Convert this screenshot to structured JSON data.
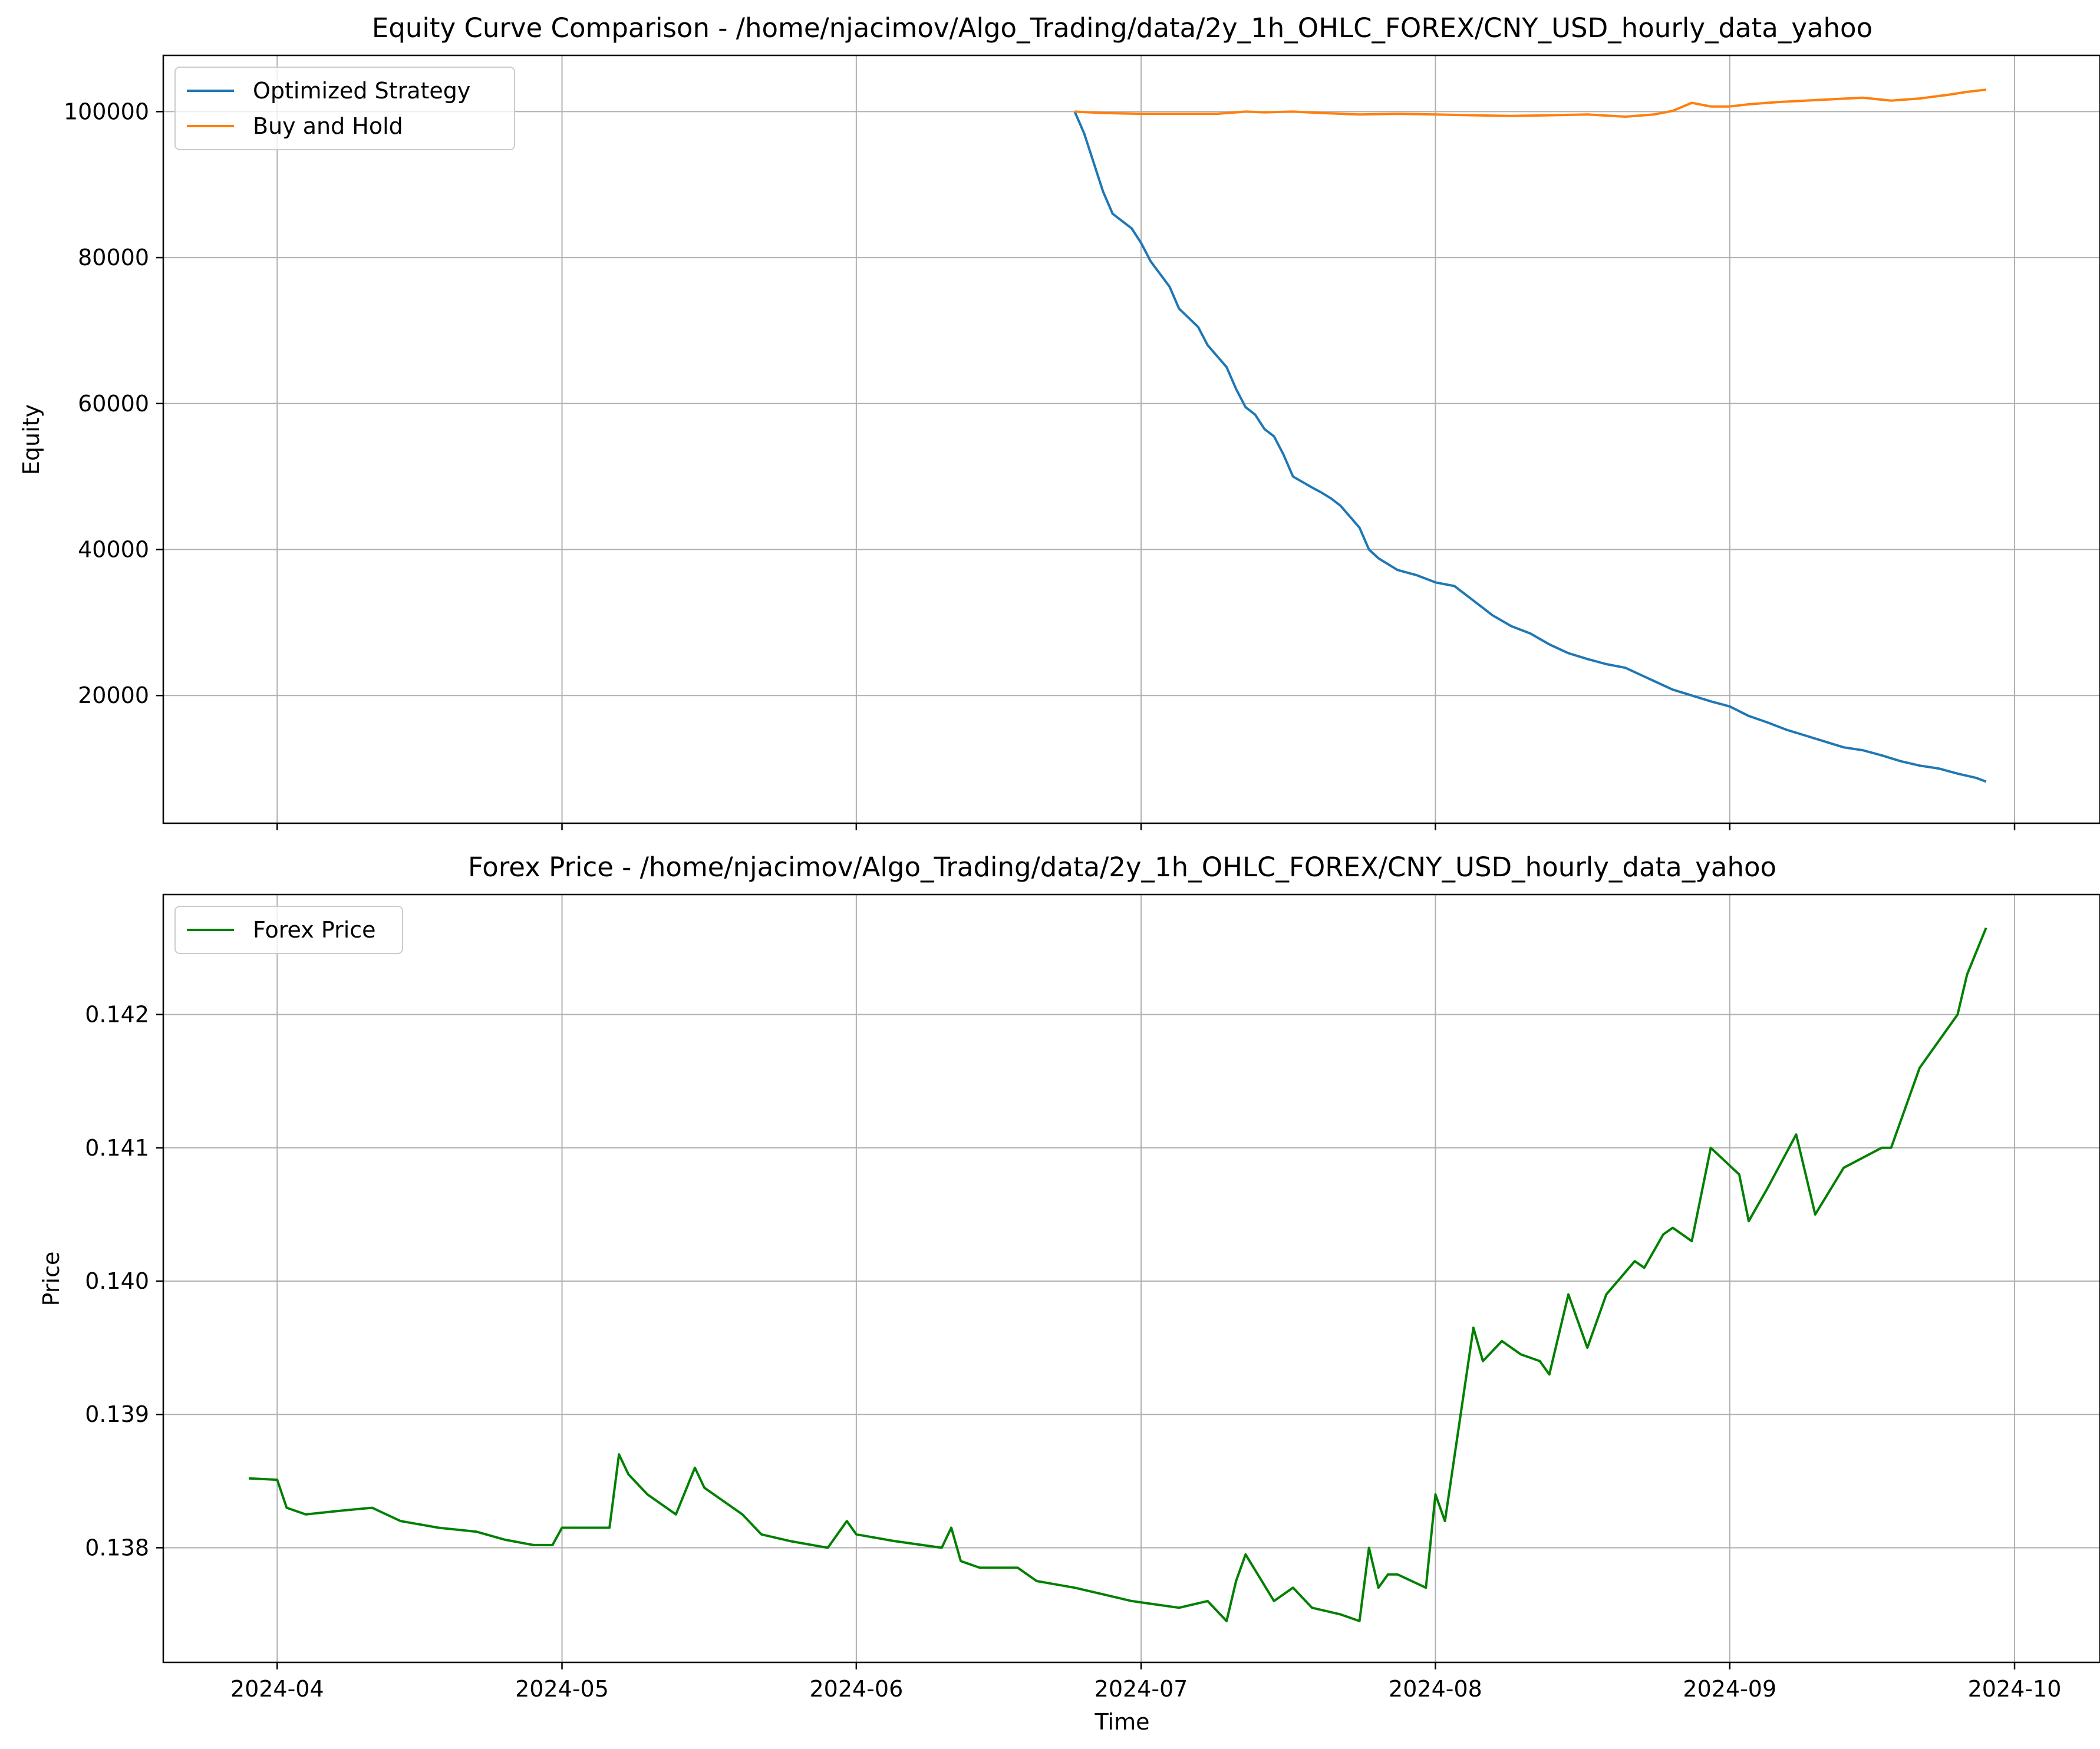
{
  "chart_data": [
    {
      "type": "line",
      "title": "Equity Curve Comparison - /home/njacimov/Algo_Trading/data/2y_1h_OHLC_FOREX/CNY_USD_hourly_data_yahoo",
      "xlabel": "",
      "ylabel": "Equity",
      "grid": true,
      "legend_position": "top-left",
      "xlim": [
        "2024-03-20",
        "2024-10-10"
      ],
      "ylim": [
        2500,
        107700
      ],
      "yticks": [
        20000,
        40000,
        60000,
        80000,
        100000
      ],
      "ytick_labels": [
        "20000",
        "40000",
        "60000",
        "80000",
        "100000"
      ],
      "xticks": [
        "2024-04-01",
        "2024-05-01",
        "2024-06-01",
        "2024-07-01",
        "2024-08-01",
        "2024-09-01",
        "2024-10-01"
      ],
      "series": [
        {
          "name": "Optimized Strategy",
          "color": "#1f77b4",
          "x": [
            "2024-06-24",
            "2024-06-25",
            "2024-06-26",
            "2024-06-27",
            "2024-06-28",
            "2024-06-30",
            "2024-07-01",
            "2024-07-02",
            "2024-07-04",
            "2024-07-05",
            "2024-07-07",
            "2024-07-08",
            "2024-07-10",
            "2024-07-11",
            "2024-07-12",
            "2024-07-13",
            "2024-07-14",
            "2024-07-15",
            "2024-07-16",
            "2024-07-17",
            "2024-07-19",
            "2024-07-20",
            "2024-07-21",
            "2024-07-22",
            "2024-07-23",
            "2024-07-24",
            "2024-07-25",
            "2024-07-26",
            "2024-07-28",
            "2024-07-30",
            "2024-08-01",
            "2024-08-03",
            "2024-08-05",
            "2024-08-07",
            "2024-08-09",
            "2024-08-11",
            "2024-08-13",
            "2024-08-15",
            "2024-08-17",
            "2024-08-19",
            "2024-08-21",
            "2024-08-24",
            "2024-08-26",
            "2024-08-28",
            "2024-08-30",
            "2024-09-01",
            "2024-09-03",
            "2024-09-05",
            "2024-09-07",
            "2024-09-09",
            "2024-09-11",
            "2024-09-13",
            "2024-09-15",
            "2024-09-17",
            "2024-09-19",
            "2024-09-21",
            "2024-09-23",
            "2024-09-25",
            "2024-09-27",
            "2024-09-28"
          ],
          "values": [
            100000,
            97000,
            93000,
            89000,
            86000,
            84000,
            82000,
            79500,
            76000,
            73000,
            70500,
            68000,
            65000,
            62000,
            59500,
            58500,
            56500,
            55500,
            53000,
            50000,
            48500,
            47800,
            47000,
            46000,
            44500,
            43000,
            40000,
            38800,
            37200,
            36500,
            35500,
            35000,
            33000,
            31000,
            29500,
            28500,
            27000,
            25800,
            25000,
            24300,
            23800,
            22000,
            20800,
            20000,
            19200,
            18500,
            17200,
            16300,
            15300,
            14500,
            13700,
            12900,
            12500,
            11800,
            11000,
            10400,
            10000,
            9300,
            8700,
            8200
          ]
        },
        {
          "name": "Buy and Hold",
          "color": "#ff7f0e",
          "x": [
            "2024-06-24",
            "2024-06-27",
            "2024-07-01",
            "2024-07-05",
            "2024-07-09",
            "2024-07-12",
            "2024-07-14",
            "2024-07-17",
            "2024-07-20",
            "2024-07-24",
            "2024-07-28",
            "2024-08-01",
            "2024-08-05",
            "2024-08-09",
            "2024-08-13",
            "2024-08-17",
            "2024-08-21",
            "2024-08-24",
            "2024-08-26",
            "2024-08-28",
            "2024-08-30",
            "2024-09-01",
            "2024-09-03",
            "2024-09-06",
            "2024-09-09",
            "2024-09-12",
            "2024-09-15",
            "2024-09-18",
            "2024-09-21",
            "2024-09-24",
            "2024-09-26",
            "2024-09-28"
          ],
          "values": [
            100000,
            99800,
            99700,
            99700,
            99700,
            100000,
            99900,
            100000,
            99800,
            99600,
            99700,
            99600,
            99500,
            99400,
            99500,
            99600,
            99300,
            99600,
            100100,
            101200,
            100700,
            100700,
            101000,
            101300,
            101500,
            101700,
            101900,
            101500,
            101800,
            102300,
            102700,
            103000
          ]
        }
      ]
    },
    {
      "type": "line",
      "title": "Forex Price - /home/njacimov/Algo_Trading/data/2y_1h_OHLC_FOREX/CNY_USD_hourly_data_yahoo",
      "xlabel": "Time",
      "ylabel": "Price",
      "grid": true,
      "legend_position": "top-left",
      "xlim": [
        "2024-03-20",
        "2024-10-10"
      ],
      "ylim": [
        0.13714,
        0.1429
      ],
      "yticks": [
        0.138,
        0.139,
        0.14,
        0.141,
        0.142
      ],
      "ytick_labels": [
        "0.138",
        "0.139",
        "0.140",
        "0.141",
        "0.142"
      ],
      "xticks": [
        "2024-04-01",
        "2024-05-01",
        "2024-06-01",
        "2024-07-01",
        "2024-08-01",
        "2024-09-01",
        "2024-10-01"
      ],
      "xtick_labels": [
        "2024-04",
        "2024-05",
        "2024-06",
        "2024-07",
        "2024-08",
        "2024-09",
        "2024-10"
      ],
      "series": [
        {
          "name": "Forex Price",
          "color": "#008000",
          "x": [
            "2024-03-29",
            "2024-04-01",
            "2024-04-02",
            "2024-04-04",
            "2024-04-08",
            "2024-04-11",
            "2024-04-14",
            "2024-04-18",
            "2024-04-22",
            "2024-04-25",
            "2024-04-28",
            "2024-04-30",
            "2024-05-01",
            "2024-05-06",
            "2024-05-07",
            "2024-05-08",
            "2024-05-10",
            "2024-05-13",
            "2024-05-15",
            "2024-05-16",
            "2024-05-20",
            "2024-05-22",
            "2024-05-25",
            "2024-05-29",
            "2024-05-31",
            "2024-06-01",
            "2024-06-05",
            "2024-06-10",
            "2024-06-11",
            "2024-06-12",
            "2024-06-14",
            "2024-06-18",
            "2024-06-20",
            "2024-06-24",
            "2024-06-27",
            "2024-06-30",
            "2024-07-02",
            "2024-07-05",
            "2024-07-08",
            "2024-07-10",
            "2024-07-11",
            "2024-07-12",
            "2024-07-15",
            "2024-07-17",
            "2024-07-19",
            "2024-07-22",
            "2024-07-24",
            "2024-07-25",
            "2024-07-26",
            "2024-07-27",
            "2024-07-28",
            "2024-07-31",
            "2024-08-01",
            "2024-08-02",
            "2024-08-05",
            "2024-08-06",
            "2024-08-08",
            "2024-08-10",
            "2024-08-12",
            "2024-08-13",
            "2024-08-15",
            "2024-08-17",
            "2024-08-19",
            "2024-08-22",
            "2024-08-23",
            "2024-08-25",
            "2024-08-26",
            "2024-08-27",
            "2024-08-28",
            "2024-08-30",
            "2024-09-02",
            "2024-09-03",
            "2024-09-05",
            "2024-09-08",
            "2024-09-10",
            "2024-09-13",
            "2024-09-17",
            "2024-09-18",
            "2024-09-21",
            "2024-09-23",
            "2024-09-25",
            "2024-09-26",
            "2024-09-28"
          ],
          "values": [
            0.13852,
            0.13851,
            0.1383,
            0.13825,
            0.13828,
            0.1383,
            0.1382,
            0.13815,
            0.13812,
            0.13806,
            0.13802,
            0.13802,
            0.13815,
            0.13815,
            0.1387,
            0.13855,
            0.1384,
            0.13825,
            0.1386,
            0.13845,
            0.13825,
            0.1381,
            0.13805,
            0.138,
            0.1382,
            0.1381,
            0.13805,
            0.138,
            0.13815,
            0.1379,
            0.13785,
            0.13785,
            0.13775,
            0.1377,
            0.13765,
            0.1376,
            0.13758,
            0.13755,
            0.1376,
            0.13745,
            0.13775,
            0.13795,
            0.1376,
            0.1377,
            0.13755,
            0.1375,
            0.13745,
            0.138,
            0.1377,
            0.1378,
            0.1378,
            0.1377,
            0.1384,
            0.1382,
            0.13965,
            0.1394,
            0.13955,
            0.13945,
            0.1394,
            0.1393,
            0.1399,
            0.1395,
            0.1399,
            0.14015,
            0.1401,
            0.14035,
            0.1404,
            0.14035,
            0.1403,
            0.141,
            0.1408,
            0.14045,
            0.1407,
            0.1411,
            0.1405,
            0.14085,
            0.141,
            0.141,
            0.1416,
            0.1418,
            0.142,
            0.1423,
            0.14265
          ]
        }
      ]
    }
  ]
}
